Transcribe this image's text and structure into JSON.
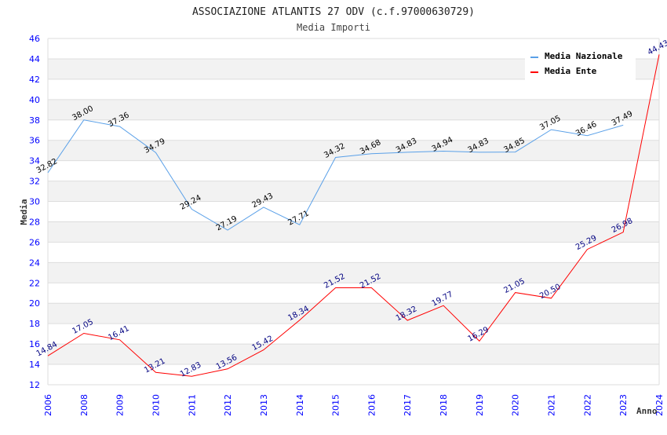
{
  "chart_data": {
    "type": "line",
    "title": "ASSOCIAZIONE ATLANTIS 27 ODV (c.f.97000630729)",
    "subtitle": "Media Importi",
    "xlabel": "Anno",
    "ylabel": "Media",
    "ylim": [
      12,
      46
    ],
    "ytick_step": 2,
    "grid": true,
    "legend_position": "top-right",
    "categories": [
      "2006",
      "2008",
      "2009",
      "2010",
      "2011",
      "2012",
      "2013",
      "2014",
      "2015",
      "2016",
      "2017",
      "2018",
      "2019",
      "2020",
      "2021",
      "2022",
      "2023",
      "2024"
    ],
    "series": [
      {
        "name": "Media Nazionale",
        "color": "#5aa0e8",
        "label_color": "#000000",
        "values": [
          32.82,
          38.0,
          37.36,
          34.79,
          29.24,
          27.19,
          29.43,
          27.71,
          34.32,
          34.68,
          34.83,
          34.94,
          34.83,
          34.85,
          37.05,
          36.46,
          37.49,
          null
        ]
      },
      {
        "name": "Media Ente",
        "color": "#ff0000",
        "label_color": "#000080",
        "values": [
          14.84,
          17.05,
          16.41,
          13.21,
          12.83,
          13.56,
          15.42,
          18.34,
          21.52,
          21.52,
          18.32,
          19.77,
          16.29,
          21.05,
          20.5,
          25.29,
          26.98,
          44.43
        ]
      }
    ]
  }
}
